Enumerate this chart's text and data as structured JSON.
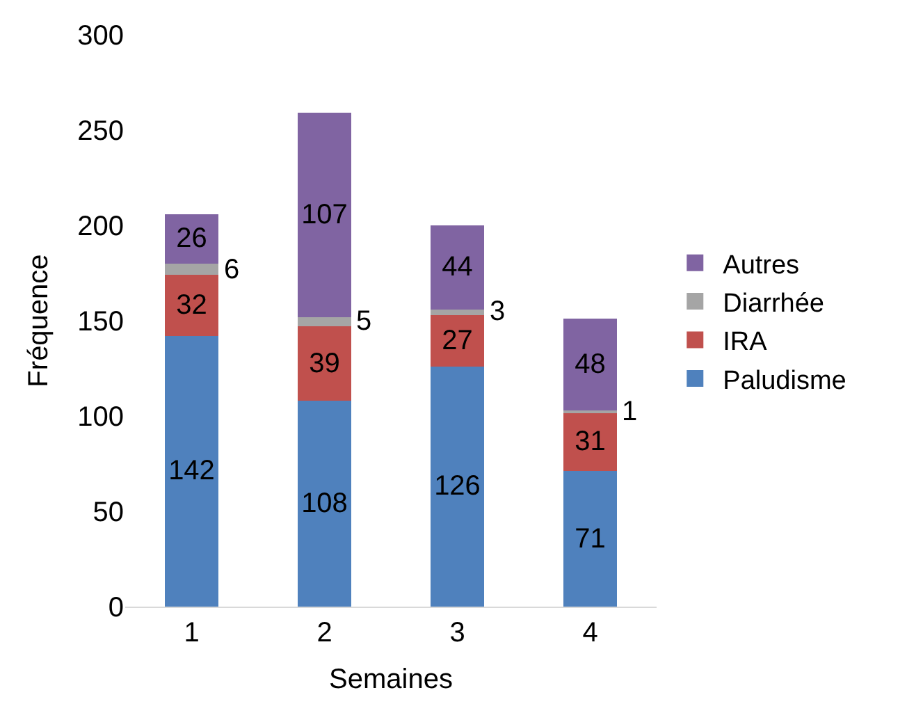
{
  "chart_data": {
    "type": "bar",
    "stacked": true,
    "xlabel": "Semaines",
    "ylabel": "Fréquence",
    "categories": [
      "1",
      "2",
      "3",
      "4"
    ],
    "series": [
      {
        "name": "Paludisme",
        "color": "#4f81bd",
        "values": [
          142,
          108,
          126,
          71
        ]
      },
      {
        "name": "IRA",
        "color": "#c0504d",
        "values": [
          32,
          39,
          27,
          31
        ]
      },
      {
        "name": "Diarrhée",
        "color": "#a5a5a5",
        "values": [
          6,
          5,
          3,
          1
        ]
      },
      {
        "name": "Autres",
        "color": "#8064a2",
        "values": [
          26,
          107,
          44,
          48
        ]
      }
    ],
    "ylim": [
      0,
      300
    ],
    "yticks": [
      0,
      50,
      100,
      150,
      200,
      250,
      300
    ],
    "grid": false,
    "legend": "right",
    "data_labels": true
  }
}
